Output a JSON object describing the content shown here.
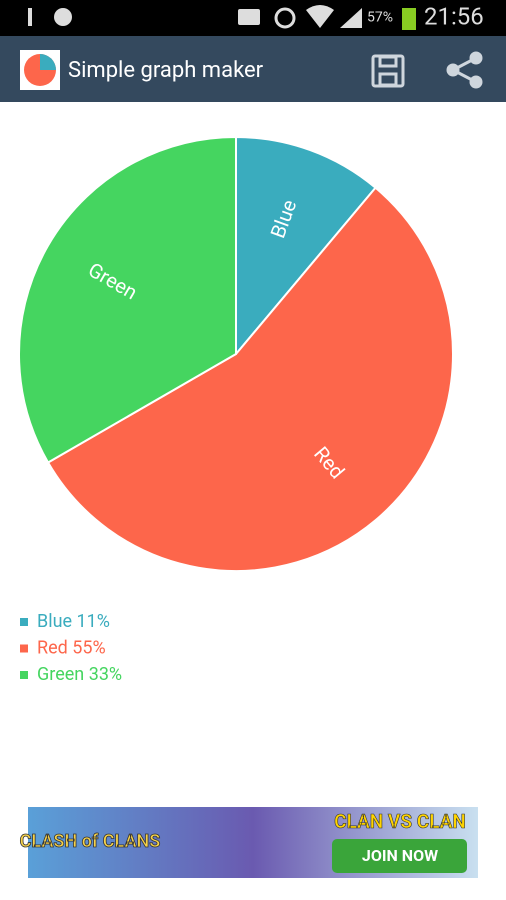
{
  "status_bar": {
    "battery": "57%",
    "time": "21:56"
  },
  "app_bar": {
    "title": "Simple graph maker"
  },
  "chart_data": {
    "type": "pie",
    "categories": [
      "Blue",
      "Red",
      "Green"
    ],
    "values": [
      11,
      55,
      33
    ],
    "value_labels": [
      "11%",
      "55%",
      "33%"
    ],
    "colors": [
      "#3aacbe",
      "#fd664b",
      "#45d560"
    ]
  },
  "ad": {
    "brand": "CLASH of CLANS",
    "headline": "CLAN VS CLAN",
    "button": "JOIN NOW"
  }
}
